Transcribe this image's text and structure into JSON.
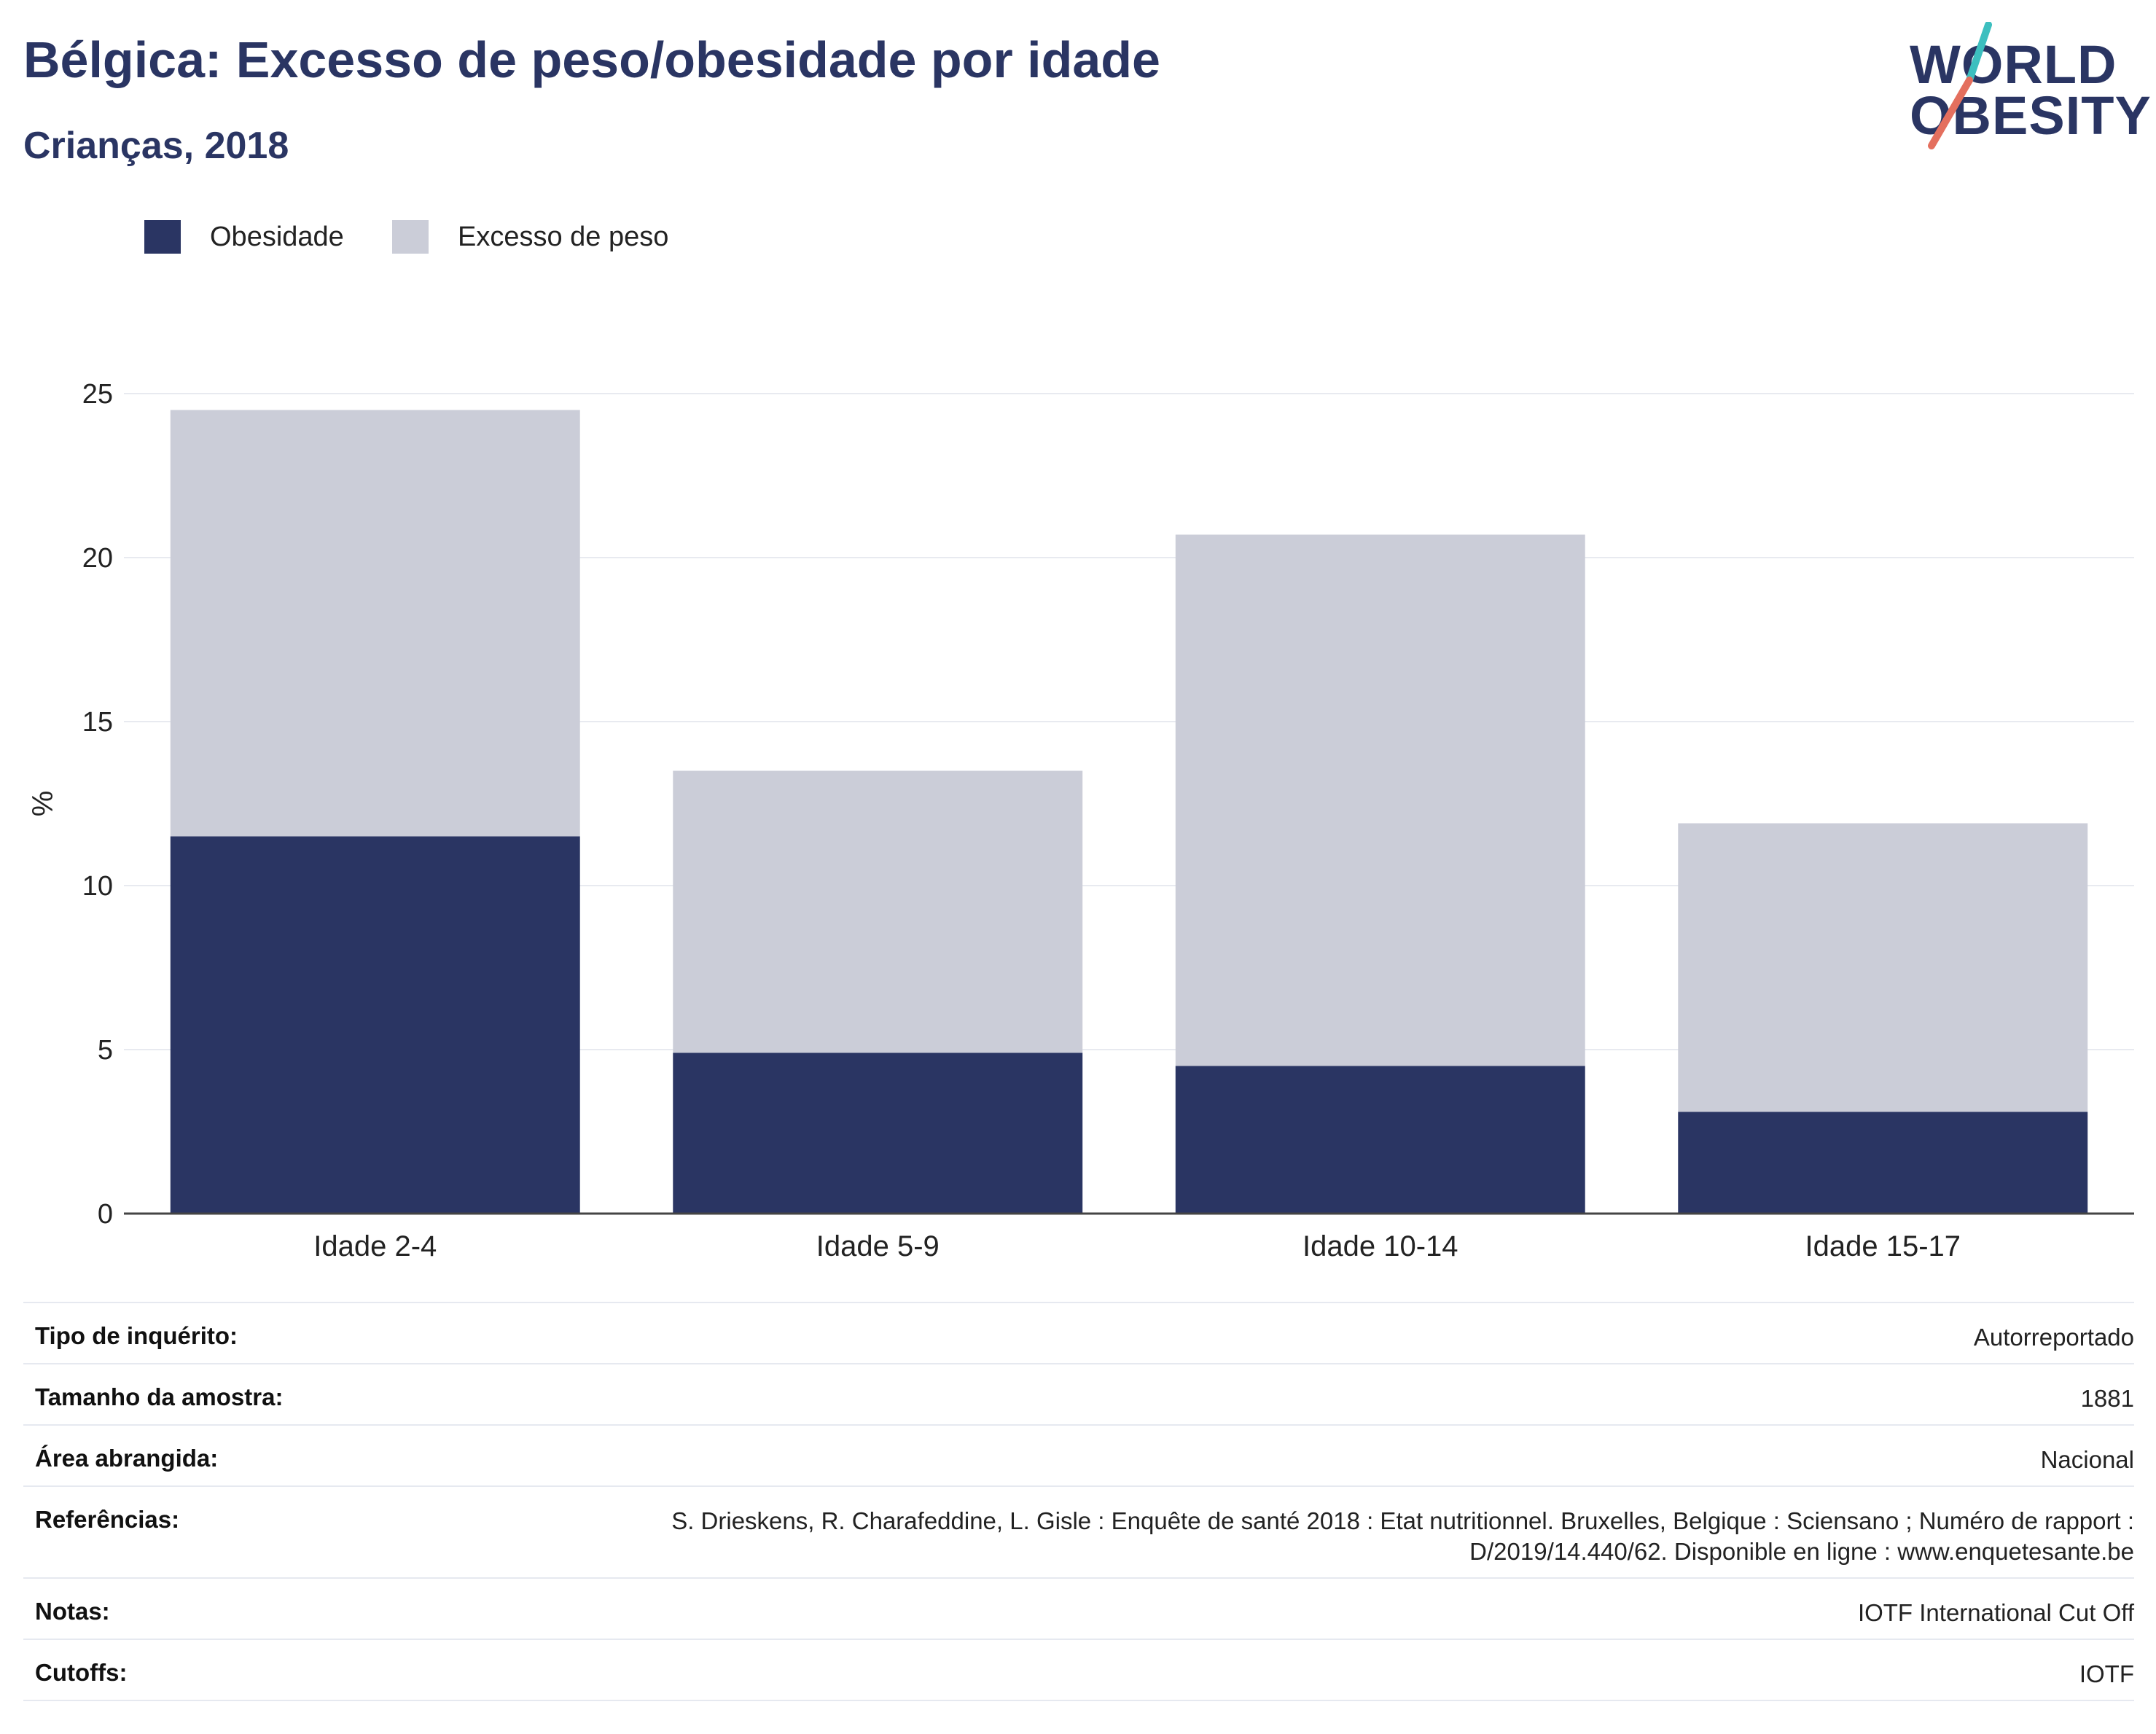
{
  "header": {
    "title": "Bélgica: Excesso de peso/obesidade por idade",
    "subtitle": "Crianças, 2018"
  },
  "logo": {
    "line1": "WORLD",
    "line2": "OBESITY",
    "accent_teal": "#3dbfbf",
    "accent_coral": "#e46f5e"
  },
  "legend": [
    {
      "label": "Obesidade",
      "color": "#2a3563"
    },
    {
      "label": "Excesso de peso",
      "color": "#cbcdd8"
    }
  ],
  "chart_data": {
    "type": "bar",
    "stacked": true,
    "categories": [
      "Idade 2-4",
      "Idade 5-9",
      "Idade 10-14",
      "Idade 15-17"
    ],
    "series": [
      {
        "name": "Obesidade",
        "color": "#2a3563",
        "values": [
          11.5,
          4.9,
          4.5,
          3.1
        ]
      },
      {
        "name": "Excesso de peso",
        "color": "#cbcdd8",
        "values": [
          13.0,
          8.6,
          16.2,
          8.8
        ]
      }
    ],
    "ylabel": "%",
    "ylim": [
      0,
      25
    ],
    "yticks": [
      0,
      5,
      10,
      15,
      20,
      25
    ],
    "grid": true,
    "legend_position": "top-left"
  },
  "info": [
    {
      "key": "Tipo de inquérito:",
      "value": "Autorreportado"
    },
    {
      "key": "Tamanho da amostra:",
      "value": "1881"
    },
    {
      "key": "Área abrangida:",
      "value": "Nacional"
    },
    {
      "key": "Referências:",
      "value": "S. Drieskens, R. Charafeddine, L. Gisle : Enquête de santé 2018 : Etat nutritionnel. Bruxelles, Belgique : Sciensano ; Numéro de rapport : D/2019/14.440/62. Disponible en ligne : www.enquetesante.be"
    },
    {
      "key": "Notas:",
      "value": "IOTF International Cut Off"
    },
    {
      "key": "Cutoffs:",
      "value": "IOTF"
    }
  ]
}
